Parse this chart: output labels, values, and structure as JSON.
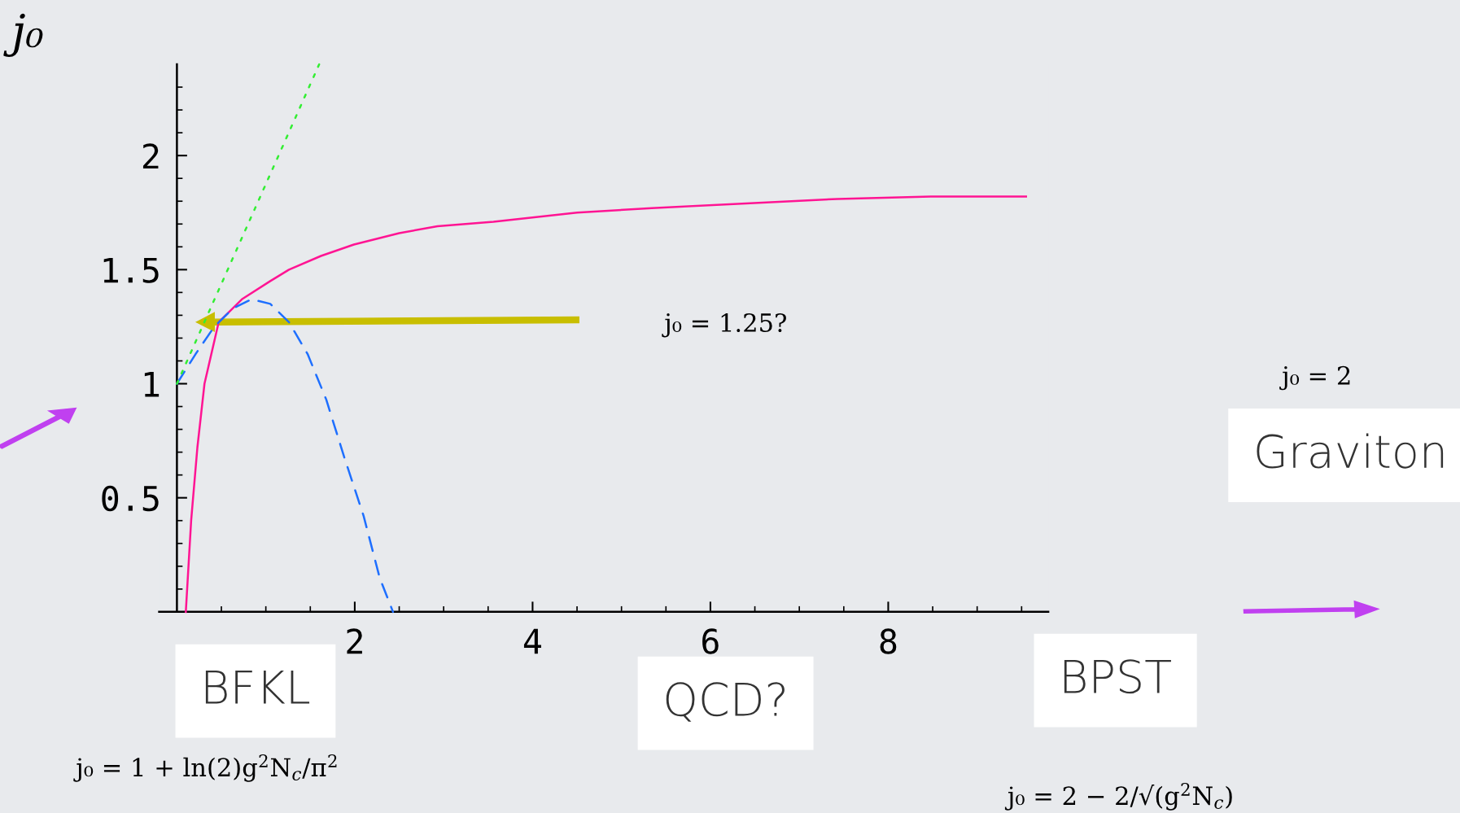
{
  "chart_data": {
    "type": "line",
    "ylabel": "j₀",
    "xlim": [
      -0.2,
      9.8
    ],
    "ylim": [
      0,
      2.4
    ],
    "xticks": [
      {
        "value": 0.5,
        "label": null
      },
      {
        "value": 1,
        "label": null
      },
      {
        "value": 1.5,
        "label": null
      },
      2,
      {
        "value": 2.5,
        "label": null
      },
      {
        "value": 3,
        "label": null
      },
      {
        "value": 3.5,
        "label": null
      },
      4,
      {
        "value": 4.5,
        "label": null
      },
      {
        "value": 5,
        "label": null
      },
      {
        "value": 5.5,
        "label": null
      },
      6,
      {
        "value": 6.5,
        "label": null
      },
      {
        "value": 7,
        "label": null
      },
      {
        "value": 7.5,
        "label": null
      },
      8,
      {
        "value": 8.5,
        "label": null
      },
      {
        "value": 9,
        "label": null
      },
      {
        "value": 9.5,
        "label": null
      }
    ],
    "yticks": [
      {
        "value": 0.1,
        "label": null
      },
      {
        "value": 0.2,
        "label": null
      },
      {
        "value": 0.3,
        "label": null
      },
      {
        "value": 0.4,
        "label": null
      },
      0.5,
      {
        "value": 0.6,
        "label": null
      },
      {
        "value": 0.7,
        "label": null
      },
      {
        "value": 0.8,
        "label": null
      },
      {
        "value": 0.9,
        "label": null
      },
      1,
      {
        "value": 1.1,
        "label": null
      },
      {
        "value": 1.2,
        "label": null
      },
      {
        "value": 1.3,
        "label": null
      },
      {
        "value": 1.4,
        "label": null
      },
      1.5,
      {
        "value": 1.6,
        "label": null
      },
      {
        "value": 1.7,
        "label": null
      },
      {
        "value": 1.8,
        "label": null
      },
      {
        "value": 1.9,
        "label": null
      },
      2,
      {
        "value": 2.1,
        "label": null
      },
      {
        "value": 2.2,
        "label": null
      },
      {
        "value": 2.3,
        "label": null
      }
    ],
    "series": [
      {
        "color": "#ff1493",
        "line_style": "solid",
        "x": [
          0.1,
          0.16,
          0.23,
          0.31,
          0.47,
          0.73,
          1.05,
          1.26,
          1.62,
          1.99,
          2.5,
          2.93,
          3.56,
          4.5,
          5.34,
          6.4,
          7.43,
          8.48,
          9.55
        ],
        "values": [
          0,
          0.4,
          0.72,
          1.0,
          1.27,
          1.37,
          1.45,
          1.5,
          1.56,
          1.61,
          1.66,
          1.69,
          1.71,
          1.75,
          1.77,
          1.79,
          1.81,
          1.82,
          1.82
        ]
      },
      {
        "color": "#1e6fff",
        "line_style": "dashed",
        "x": [
          0,
          0.21,
          0.42,
          0.63,
          0.84,
          1.05,
          1.26,
          1.47,
          1.68,
          1.88,
          2.1,
          2.28,
          2.43
        ],
        "values": [
          1.0,
          1.13,
          1.25,
          1.33,
          1.37,
          1.35,
          1.27,
          1.13,
          0.93,
          0.68,
          0.42,
          0.15,
          0
        ]
      },
      {
        "color": "#33ee33",
        "line_style": "dotted",
        "x": [
          0,
          1.6
        ],
        "values": [
          1.0,
          2.4
        ]
      }
    ],
    "annotations": [
      "j₀ = 1.25?",
      "j₀ = 2",
      "Graviton",
      "BFKL",
      "QCD?",
      "BPST",
      "j₀ = 1 + ln(2)g$^{2}$N$_{c}$/π$^{2}$",
      "j₀ = 2 − 2/√(g$^{2}$N$_{c}$)"
    ]
  }
}
